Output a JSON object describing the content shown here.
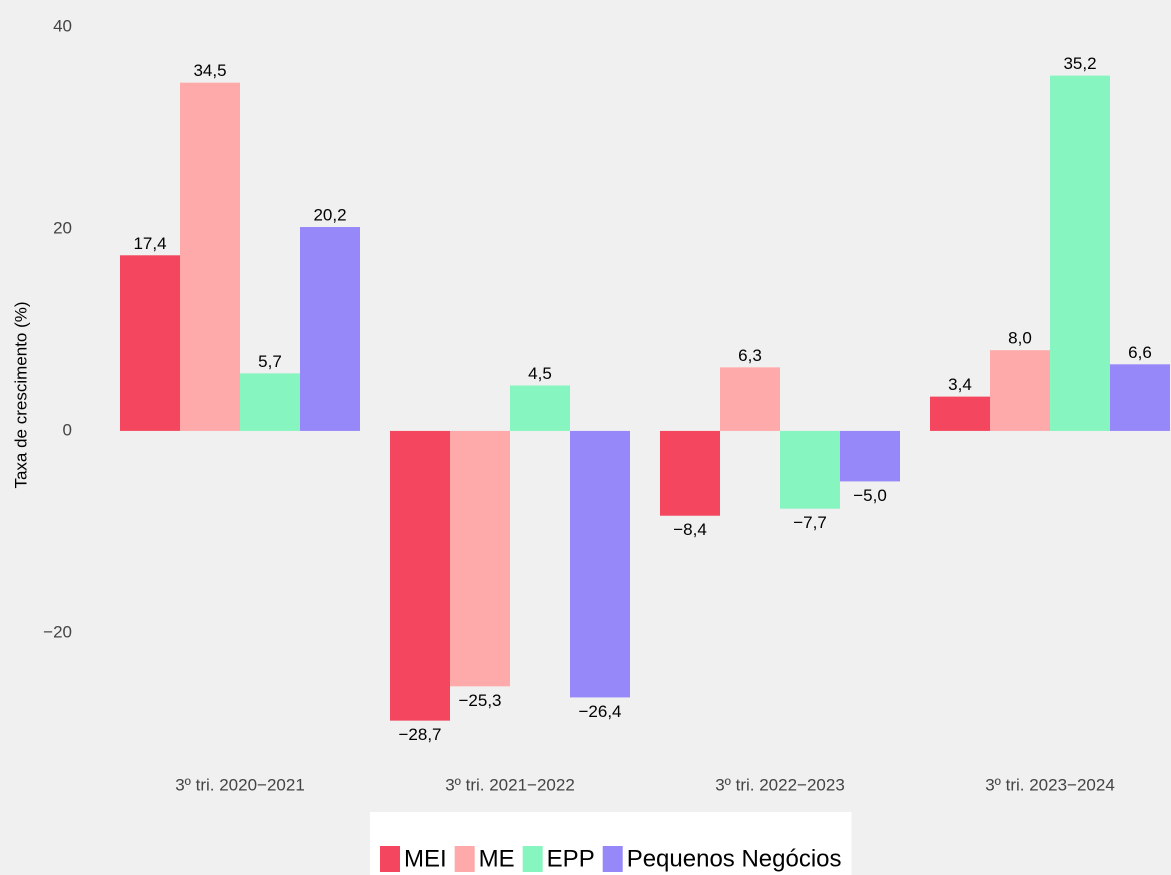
{
  "chart_data": {
    "type": "bar",
    "y_label": "Taxa de crescimento (%)",
    "categories": [
      "3º tri. 2020−2021",
      "3º tri. 2021−2022",
      "3º tri. 2022−2023",
      "3º tri. 2023−2024"
    ],
    "series": [
      {
        "name": "MEI",
        "color": "#f4475f",
        "values": [
          17.4,
          -28.7,
          -8.4,
          3.4
        ],
        "value_labels": [
          "17,4",
          "−28,7",
          "−8,4",
          "3,4"
        ]
      },
      {
        "name": "ME",
        "color": "#ffaaaa",
        "values": [
          34.5,
          -25.3,
          6.3,
          8.0
        ],
        "value_labels": [
          "34,5",
          "−25,3",
          "6,3",
          "8,0"
        ]
      },
      {
        "name": "EPP",
        "color": "#86f5bf",
        "values": [
          5.7,
          4.5,
          -7.7,
          35.2
        ],
        "value_labels": [
          "5,7",
          "4,5",
          "−7,7",
          "35,2"
        ]
      },
      {
        "name": "Pequenos Negócios",
        "color": "#9688f8",
        "values": [
          20.2,
          -26.4,
          -5.0,
          6.6
        ],
        "value_labels": [
          "20,2",
          "−26,4",
          "−5,0",
          "6,6"
        ]
      }
    ],
    "ylim": [
      -32.6,
      41.7
    ],
    "yticks": [
      {
        "value": -20,
        "label": "−20"
      },
      0,
      20,
      40
    ],
    "legend": "bottom"
  }
}
